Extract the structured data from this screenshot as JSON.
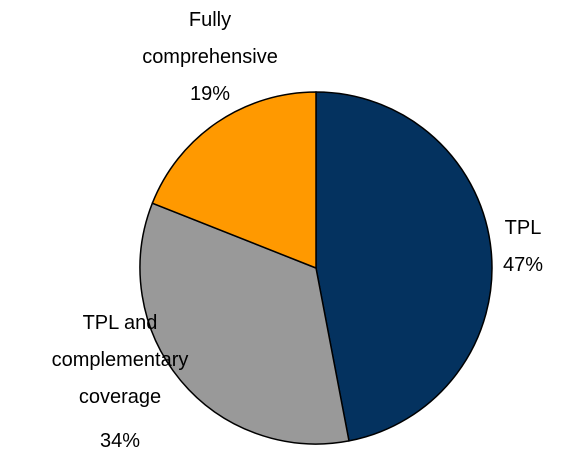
{
  "chart_data": {
    "type": "pie",
    "categories": [
      "TPL",
      "TPL and complementary coverage",
      "Fully comprehensive"
    ],
    "values": [
      47,
      34,
      19
    ],
    "value_labels": [
      "47%",
      "34%",
      "19%"
    ],
    "colors": [
      "#04325f",
      "#999999",
      "#ff9900"
    ]
  }
}
